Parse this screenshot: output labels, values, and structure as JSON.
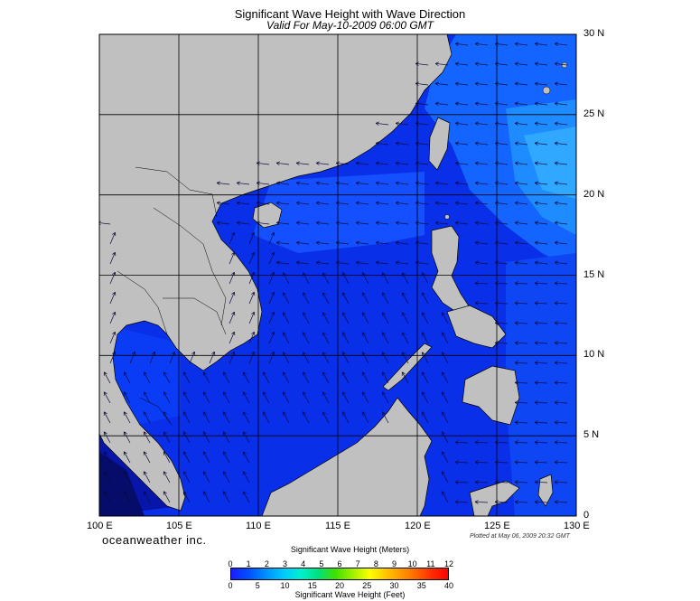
{
  "title": "Significant Wave Height with Wave Direction",
  "subtitle": "Valid For May-10-2009 06:00 GMT",
  "brand": "oceanweather inc.",
  "plotted": "Plotted at May 06, 2009 20:32 GMT",
  "x_ticks": [
    "100 E",
    "105 E",
    "110 E",
    "115 E",
    "120 E",
    "125 E",
    "130 E"
  ],
  "y_ticks": [
    "30 N",
    "25 N",
    "20 N",
    "15 N",
    "10 N",
    "5 N",
    "0"
  ],
  "colorbar": {
    "title_meters": "Significant Wave Height (Meters)",
    "title_feet": "Significant Wave Height (Feet)",
    "meter_labels": [
      "0",
      "1",
      "2",
      "3",
      "4",
      "5",
      "6",
      "7",
      "8",
      "9",
      "10",
      "11",
      "12"
    ],
    "feet_labels": [
      "0",
      "5",
      "10",
      "15",
      "20",
      "25",
      "30",
      "35",
      "40"
    ]
  },
  "colors": {
    "land": "#c0c0c0",
    "sea_dark": "#0a1fd6",
    "sea_mid": "#0a3cf0",
    "sea_light": "#1b7bff",
    "arrow": "#0a0a3a"
  },
  "chart_data": {
    "type": "heatmap",
    "title": "Significant Wave Height with Wave Direction",
    "subtitle": "Valid For May-10-2009 06:00 GMT",
    "x_range": [
      100,
      130
    ],
    "y_range": [
      0,
      30
    ],
    "x_unit": "E",
    "y_unit": "N",
    "color_scale_meters": [
      0,
      12
    ],
    "color_scale_feet": [
      0,
      40
    ],
    "grid": true
  }
}
